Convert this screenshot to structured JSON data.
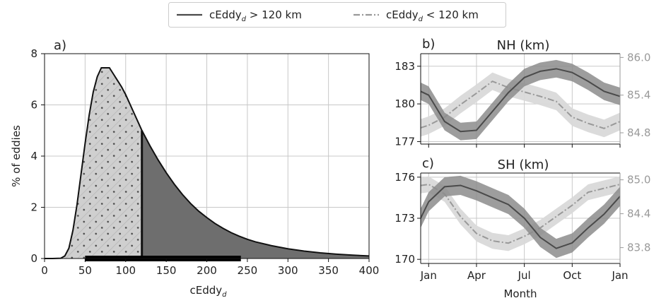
{
  "legend": {
    "position": "top-center",
    "entries": [
      {
        "label": "cEddy",
        "sub": "d",
        "suffix": " > 120 km",
        "color": "#4a4a4a",
        "dash": "solid"
      },
      {
        "label": "cEddy",
        "sub": "d",
        "suffix": " < 120 km",
        "color": "#999999",
        "dash": "dashdot"
      }
    ]
  },
  "colors": {
    "large_line": "#4a4a4a",
    "large_band": "#8c8c8c",
    "small_line": "#999999",
    "small_band": "#d9d9d9",
    "small_fill": "#cfcfcf",
    "large_fill": "#6e6e6e",
    "hatch": "#b4b4b4",
    "right_axis_text": "#9a9a9a"
  },
  "chart_data": [
    {
      "type": "area",
      "panel_label": "a)",
      "xlabel_main": "cEddy",
      "xlabel_sub": "d",
      "ylabel": "% of eddies",
      "xlim": [
        0,
        400
      ],
      "ylim": [
        0,
        8
      ],
      "xticks": [
        0,
        50,
        100,
        150,
        200,
        250,
        300,
        350,
        400
      ],
      "yticks": [
        0,
        2,
        4,
        6,
        8
      ],
      "grid": true,
      "split_at": 120,
      "bar_range": [
        50,
        242
      ],
      "x": [
        0,
        10,
        20,
        25,
        30,
        35,
        40,
        45,
        50,
        55,
        60,
        65,
        70,
        75,
        80,
        85,
        90,
        95,
        100,
        105,
        110,
        115,
        120,
        125,
        130,
        140,
        150,
        160,
        170,
        180,
        190,
        200,
        210,
        220,
        230,
        240,
        250,
        260,
        280,
        300,
        320,
        340,
        360,
        380,
        400
      ],
      "y": [
        0.0,
        0.0,
        0.01,
        0.1,
        0.4,
        1.1,
        2.1,
        3.3,
        4.5,
        5.6,
        6.5,
        7.1,
        7.45,
        7.45,
        7.45,
        7.2,
        6.95,
        6.7,
        6.4,
        6.05,
        5.7,
        5.35,
        5.0,
        4.7,
        4.4,
        3.85,
        3.35,
        2.9,
        2.5,
        2.15,
        1.85,
        1.6,
        1.37,
        1.18,
        1.01,
        0.87,
        0.75,
        0.65,
        0.5,
        0.38,
        0.29,
        0.22,
        0.17,
        0.13,
        0.1
      ]
    },
    {
      "type": "line",
      "panel_label": "b)",
      "title": "NH (km)",
      "x_month_index": [
        0,
        1,
        2,
        3,
        4,
        5,
        6,
        7,
        8,
        9,
        10,
        11,
        12
      ],
      "xtick_index": [
        1,
        4,
        7,
        10,
        13
      ],
      "xtick_labels": [
        "Jan",
        "Apr",
        "Jul",
        "Oct",
        "Jan"
      ],
      "xlim": [
        0.5,
        13.0
      ],
      "ylim_left": [
        176.8,
        184.0
      ],
      "yticks_left": [
        177,
        180,
        183
      ],
      "ylim_right": [
        84.62,
        86.06
      ],
      "yticks_right": [
        "84.8",
        "85.4",
        "86.0"
      ],
      "series": [
        {
          "axis": "left",
          "style": "solid",
          "x": [
            0.5,
            1,
            2,
            3,
            4,
            5,
            6,
            7,
            8,
            9,
            10,
            11,
            12,
            13
          ],
          "values": [
            181.0,
            180.7,
            178.6,
            177.8,
            177.9,
            179.4,
            180.9,
            182.1,
            182.6,
            182.8,
            182.5,
            181.8,
            181.0,
            180.6
          ],
          "band": 0.7
        },
        {
          "axis": "right",
          "style": "dashdot",
          "x": [
            0.5,
            1,
            2,
            3,
            4,
            5,
            6,
            7,
            8,
            9,
            10,
            11,
            12,
            13
          ],
          "values": [
            84.88,
            84.92,
            85.05,
            85.25,
            85.43,
            85.62,
            85.52,
            85.45,
            85.38,
            85.3,
            85.05,
            84.95,
            84.87,
            84.98
          ],
          "band": 0.14
        }
      ]
    },
    {
      "type": "line",
      "panel_label": "c)",
      "title": "SH (km)",
      "xlabel": "Month",
      "x_month_index": [
        0,
        1,
        2,
        3,
        4,
        5,
        6,
        7,
        8,
        9,
        10,
        11,
        12
      ],
      "xtick_index": [
        1,
        4,
        7,
        10,
        13
      ],
      "xtick_labels": [
        "Jan",
        "Apr",
        "Jul",
        "Oct",
        "Jan"
      ],
      "xlim": [
        0.5,
        13.0
      ],
      "ylim_left": [
        169.7,
        176.3
      ],
      "yticks_left": [
        170,
        173,
        176
      ],
      "ylim_right": [
        83.52,
        85.12
      ],
      "yticks_right": [
        "83.8",
        "84.4",
        "85.0"
      ],
      "series": [
        {
          "axis": "left",
          "style": "solid",
          "x": [
            0.5,
            1,
            2,
            3,
            4,
            5,
            6,
            7,
            8,
            9,
            10,
            11,
            12,
            13
          ],
          "values": [
            173.0,
            174.2,
            175.3,
            175.4,
            175.0,
            174.5,
            174.0,
            173.0,
            171.6,
            170.8,
            171.2,
            172.3,
            173.3,
            174.6
          ],
          "band": 0.7
        },
        {
          "axis": "right",
          "style": "dashdot",
          "x": [
            0.5,
            1,
            2,
            3,
            4,
            5,
            6,
            7,
            8,
            9,
            10,
            11,
            12,
            13
          ],
          "values": [
            84.9,
            84.92,
            84.75,
            84.35,
            84.05,
            83.92,
            83.88,
            84.0,
            84.15,
            84.35,
            84.55,
            84.78,
            84.85,
            84.92
          ],
          "band": 0.14
        }
      ]
    }
  ]
}
